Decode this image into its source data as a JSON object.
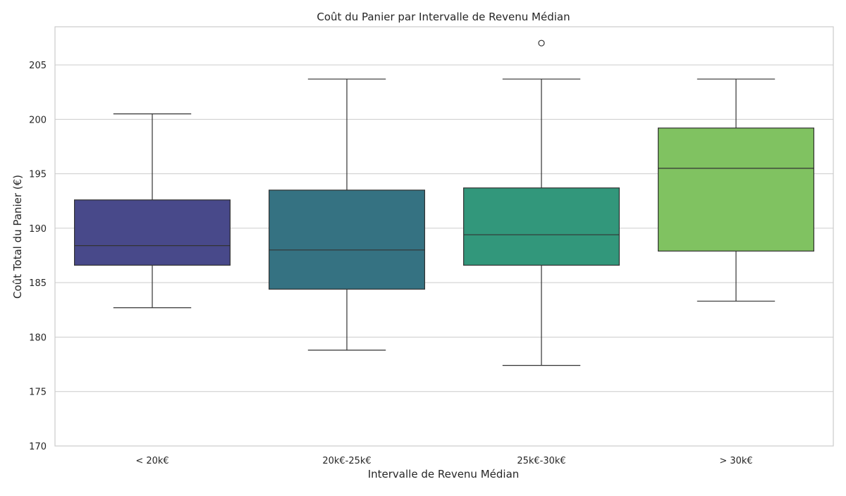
{
  "chart_data": {
    "type": "box",
    "title": "Coût du Panier par Intervalle de Revenu Médian",
    "xlabel": "Intervalle de Revenu Médian",
    "ylabel": "Coût Total du Panier (€)",
    "ylim": [
      170,
      208.5
    ],
    "yticks": [
      170,
      175,
      180,
      185,
      190,
      195,
      200,
      205
    ],
    "grid": true,
    "categories": [
      "< 20k€",
      "20k€-25k€",
      "25k€-30k€",
      "> 30k€"
    ],
    "boxes": [
      {
        "category": "< 20k€",
        "whisker_low": 182.7,
        "q1": 186.6,
        "median": 188.4,
        "q3": 192.6,
        "whisker_high": 200.5,
        "outliers": [],
        "color": "#48498a"
      },
      {
        "category": "20k€-25k€",
        "whisker_low": 178.8,
        "q1": 184.4,
        "median": 188.0,
        "q3": 193.5,
        "whisker_high": 203.7,
        "outliers": [],
        "color": "#357282"
      },
      {
        "category": "25k€-30k€",
        "whisker_low": 177.4,
        "q1": 186.6,
        "median": 189.4,
        "q3": 193.7,
        "whisker_high": 203.7,
        "outliers": [
          207.0
        ],
        "color": "#32977b"
      },
      {
        "category": "> 30k€",
        "whisker_low": 183.3,
        "q1": 187.9,
        "median": 195.5,
        "q3": 199.2,
        "whisker_high": 203.7,
        "outliers": [],
        "color": "#80c261"
      }
    ]
  }
}
